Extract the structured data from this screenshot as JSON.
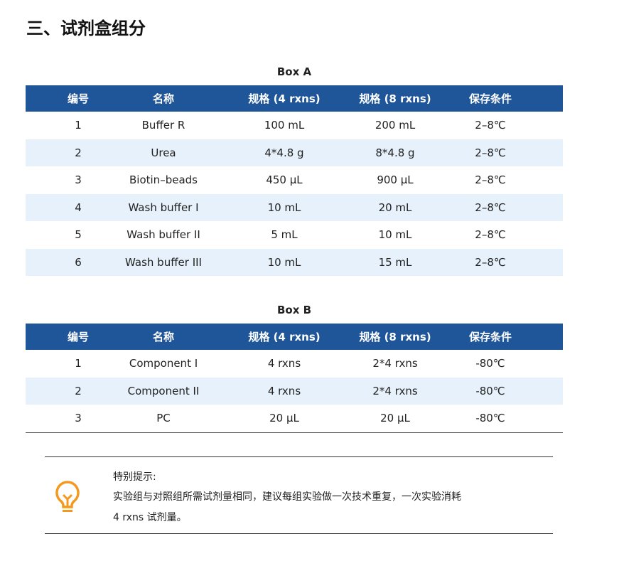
{
  "title": "三、试剂盒组分",
  "headers": [
    "编号",
    "名称",
    "规格 (4 rxns)",
    "规格 (8 rxns)",
    "保存条件"
  ],
  "box_a": {
    "title": "Box A",
    "rows": [
      [
        "1",
        "Buffer R",
        "100 mL",
        "200 mL",
        "2–8℃"
      ],
      [
        "2",
        "Urea",
        "4*4.8 g",
        "8*4.8 g",
        "2–8℃"
      ],
      [
        "3",
        "Biotin–beads",
        "450 μL",
        "900 μL",
        "2–8℃"
      ],
      [
        "4",
        "Wash buffer I",
        "10 mL",
        "20 mL",
        "2–8℃"
      ],
      [
        "5",
        "Wash buffer II",
        "5 mL",
        "10 mL",
        "2–8℃"
      ],
      [
        "6",
        "Wash buffer III",
        "10 mL",
        "15 mL",
        "2–8℃"
      ]
    ]
  },
  "box_b": {
    "title": "Box B",
    "rows": [
      [
        "1",
        "Component I",
        "4 rxns",
        "2*4 rxns",
        "-80℃"
      ],
      [
        "2",
        "Component II",
        "4 rxns",
        "2*4 rxns",
        "-80℃"
      ],
      [
        "3",
        "PC",
        "20 μL",
        "20 μL",
        "-80℃"
      ]
    ]
  },
  "note": {
    "icon": "lightbulb-icon",
    "title": "特别提示:",
    "line1": "实验组与对照组所需试剂量相同，建议每组实验做一次技术重复，一次实验消耗",
    "line2": "4 rxns 试剂量。"
  },
  "colors": {
    "header": "#1f5599",
    "stripe": "#e6f1fb",
    "icon": "#f39a1e"
  }
}
